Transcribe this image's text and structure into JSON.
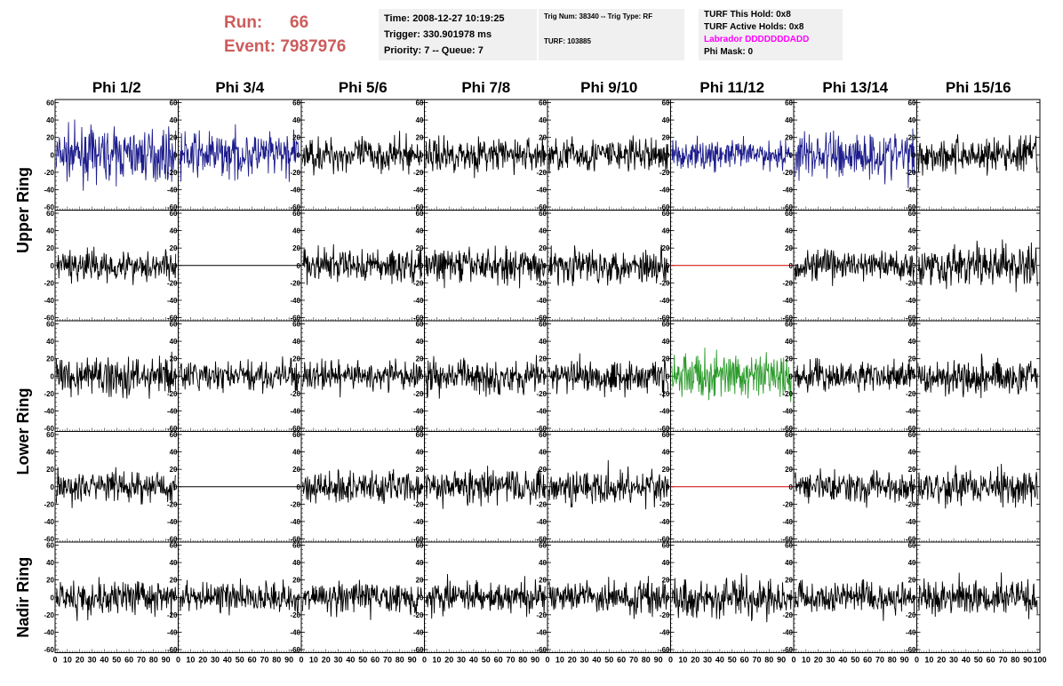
{
  "header": {
    "run_label": "Run:",
    "run_value": "66",
    "event_label": "Event:",
    "event_value": "7987976",
    "time": "Time: 2008-12-27 10:19:25",
    "trigger": "Trigger: 330.901978 ms",
    "priority_queue": "Priority: 7 -- Queue: 7",
    "trig_num": "Trig Num: 38340 -- Trig Type: RF",
    "turf": "TURF: 103885",
    "turf_this_hold": "TURF This Hold: 0x8",
    "turf_active_holds": "TURF Active Holds: 0x8",
    "labrador": "Labrador DDDDDDDADD",
    "phi_mask": "Phi Mask: 0"
  },
  "colors": {
    "run_event": "#cd5c5c",
    "labrador": "#ff00ff",
    "info_box_bg": "#f0f0f0",
    "trace_default": "#000000",
    "trace_blue": "#1c1c8c",
    "trace_red": "#cc0000",
    "trace_green": "#2a9a2a"
  },
  "chart_data": {
    "type": "line",
    "columns": [
      "Phi 1/2",
      "Phi 3/4",
      "Phi 5/6",
      "Phi 7/8",
      "Phi 9/10",
      "Phi 11/12",
      "Phi 13/14",
      "Phi 15/16"
    ],
    "ring_labels": [
      "Upper Ring",
      "Lower Ring",
      "Nadir Ring"
    ],
    "rows_per_ring": [
      2,
      2,
      1
    ],
    "xlim": [
      0,
      100
    ],
    "ylim": [
      -60,
      60
    ],
    "y_ticks": [
      60,
      40,
      20,
      0,
      -20,
      -40,
      -60
    ],
    "x_tick_labels": [
      "0",
      "10",
      "20",
      "30",
      "40",
      "50",
      "60",
      "70",
      "80",
      "90",
      "100"
    ],
    "panel_traces": [
      [
        {
          "color": "blue",
          "amplitude": 20,
          "flat": false
        },
        {
          "color": "blue",
          "amplitude": 18,
          "flat": false
        },
        {
          "color": "black",
          "amplitude": 14,
          "flat": false
        },
        {
          "color": "black",
          "amplitude": 14,
          "flat": false
        },
        {
          "color": "black",
          "amplitude": 14,
          "flat": false
        },
        {
          "color": "blue",
          "amplitude": 12,
          "flat": false
        },
        {
          "color": "blue",
          "amplitude": 20,
          "flat": false
        },
        {
          "color": "black",
          "amplitude": 15,
          "flat": false
        }
      ],
      [
        {
          "color": "black",
          "amplitude": 13,
          "flat": false
        },
        {
          "color": "black",
          "amplitude": 0,
          "flat": true
        },
        {
          "color": "black",
          "amplitude": 14,
          "flat": false
        },
        {
          "color": "black",
          "amplitude": 14,
          "flat": false
        },
        {
          "color": "black",
          "amplitude": 14,
          "flat": false
        },
        {
          "color": "red",
          "amplitude": 0,
          "flat": true
        },
        {
          "color": "black",
          "amplitude": 13,
          "flat": false
        },
        {
          "color": "black",
          "amplitude": 17,
          "flat": false
        }
      ],
      [
        {
          "color": "black",
          "amplitude": 16,
          "flat": false
        },
        {
          "color": "black",
          "amplitude": 12,
          "flat": false
        },
        {
          "color": "black",
          "amplitude": 12,
          "flat": false
        },
        {
          "color": "black",
          "amplitude": 14,
          "flat": false
        },
        {
          "color": "black",
          "amplitude": 14,
          "flat": false
        },
        {
          "color": "green",
          "amplitude": 18,
          "flat": false
        },
        {
          "color": "black",
          "amplitude": 12,
          "flat": false
        },
        {
          "color": "black",
          "amplitude": 14,
          "flat": false
        }
      ],
      [
        {
          "color": "black",
          "amplitude": 13,
          "flat": false
        },
        {
          "color": "black",
          "amplitude": 0,
          "flat": true
        },
        {
          "color": "black",
          "amplitude": 14,
          "flat": false
        },
        {
          "color": "black",
          "amplitude": 14,
          "flat": false
        },
        {
          "color": "black",
          "amplitude": 14,
          "flat": false
        },
        {
          "color": "red",
          "amplitude": 0,
          "flat": true
        },
        {
          "color": "black",
          "amplitude": 13,
          "flat": false
        },
        {
          "color": "black",
          "amplitude": 15,
          "flat": false
        }
      ],
      [
        {
          "color": "black",
          "amplitude": 14,
          "flat": false
        },
        {
          "color": "black",
          "amplitude": 12,
          "flat": false
        },
        {
          "color": "black",
          "amplitude": 13,
          "flat": false
        },
        {
          "color": "black",
          "amplitude": 13,
          "flat": false
        },
        {
          "color": "black",
          "amplitude": 13,
          "flat": false
        },
        {
          "color": "black",
          "amplitude": 14,
          "flat": false
        },
        {
          "color": "black",
          "amplitude": 13,
          "flat": false
        },
        {
          "color": "black",
          "amplitude": 15,
          "flat": false
        }
      ]
    ]
  }
}
